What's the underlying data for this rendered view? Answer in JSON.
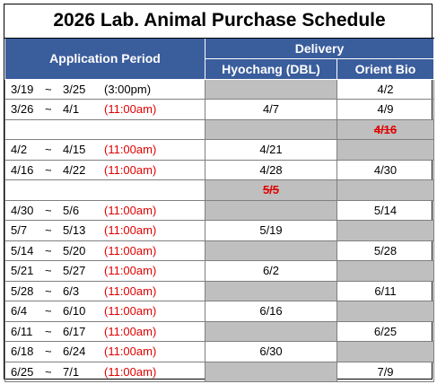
{
  "title": "2026 Lab. Animal Purchase Schedule",
  "header": {
    "application_period": "Application Period",
    "delivery": "Delivery",
    "hyochang": "Hyochang (DBL)",
    "orient": "Orient Bio"
  },
  "rows": [
    {
      "start": "3/19",
      "tilde": "~",
      "end": "3/25",
      "time": "(3:00pm)",
      "time_red": false,
      "hyochang": "",
      "hyochang_grey": true,
      "orient": "4/2",
      "orient_grey": false
    },
    {
      "start": "3/26",
      "tilde": "~",
      "end": "4/1",
      "time": "(11:00am)",
      "time_red": true,
      "hyochang": "4/7",
      "hyochang_grey": false,
      "orient": "4/9",
      "orient_grey": false
    },
    {
      "start": "",
      "tilde": "",
      "end": "",
      "time": "",
      "time_red": false,
      "hyochang": "",
      "hyochang_grey": true,
      "orient": "4/16",
      "orient_grey": true,
      "orient_strike": true
    },
    {
      "start": "4/2",
      "tilde": "~",
      "end": "4/15",
      "time": "(11:00am)",
      "time_red": true,
      "hyochang": "4/21",
      "hyochang_grey": false,
      "orient": "",
      "orient_grey": true
    },
    {
      "start": "4/16",
      "tilde": "~",
      "end": "4/22",
      "time": "(11:00am)",
      "time_red": true,
      "hyochang": "4/28",
      "hyochang_grey": false,
      "orient": "4/30",
      "orient_grey": false
    },
    {
      "start": "",
      "tilde": "",
      "end": "",
      "time": "",
      "time_red": false,
      "hyochang": "5/5",
      "hyochang_grey": true,
      "hyochang_strike": true,
      "orient": "",
      "orient_grey": true
    },
    {
      "start": "4/30",
      "tilde": "~",
      "end": "5/6",
      "time": "(11:00am)",
      "time_red": true,
      "hyochang": "",
      "hyochang_grey": true,
      "orient": "5/14",
      "orient_grey": false
    },
    {
      "start": "5/7",
      "tilde": "~",
      "end": "5/13",
      "time": "(11:00am)",
      "time_red": true,
      "hyochang": "5/19",
      "hyochang_grey": false,
      "orient": "",
      "orient_grey": true
    },
    {
      "start": "5/14",
      "tilde": "~",
      "end": "5/20",
      "time": "(11:00am)",
      "time_red": true,
      "hyochang": "",
      "hyochang_grey": true,
      "orient": "5/28",
      "orient_grey": false
    },
    {
      "start": "5/21",
      "tilde": "~",
      "end": "5/27",
      "time": "(11:00am)",
      "time_red": true,
      "hyochang": "6/2",
      "hyochang_grey": false,
      "orient": "",
      "orient_grey": true
    },
    {
      "start": "5/28",
      "tilde": "~",
      "end": "6/3",
      "time": "(11:00am)",
      "time_red": true,
      "hyochang": "",
      "hyochang_grey": true,
      "orient": "6/11",
      "orient_grey": false
    },
    {
      "start": "6/4",
      "tilde": "~",
      "end": "6/10",
      "time": "(11:00am)",
      "time_red": true,
      "hyochang": "6/16",
      "hyochang_grey": false,
      "orient": "",
      "orient_grey": true
    },
    {
      "start": "6/11",
      "tilde": "~",
      "end": "6/17",
      "time": "(11:00am)",
      "time_red": true,
      "hyochang": "",
      "hyochang_grey": true,
      "orient": "6/25",
      "orient_grey": false
    },
    {
      "start": "6/18",
      "tilde": "~",
      "end": "6/24",
      "time": "(11:00am)",
      "time_red": true,
      "hyochang": "6/30",
      "hyochang_grey": false,
      "orient": "",
      "orient_grey": true
    },
    {
      "start": "6/25",
      "tilde": "~",
      "end": "7/1",
      "time": "(11:00am)",
      "time_red": true,
      "hyochang": "",
      "hyochang_grey": true,
      "orient": "7/9",
      "orient_grey": false
    }
  ]
}
